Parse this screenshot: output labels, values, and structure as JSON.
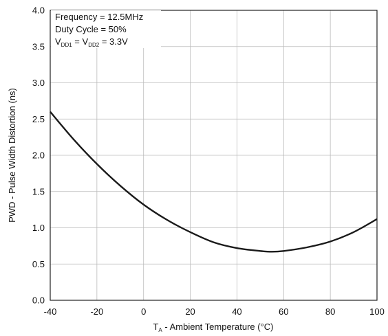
{
  "chart_data": {
    "type": "line",
    "title": "",
    "xlabel": {
      "main": "T",
      "sub": "A",
      "rest": " - Ambient Temperature (°C)"
    },
    "ylabel": "PWD - Pulse Width Distortion (ns)",
    "xlim": [
      -40,
      100
    ],
    "ylim": [
      0.0,
      4.0
    ],
    "x_ticks": [
      "-40",
      "-20",
      "0",
      "20",
      "40",
      "60",
      "80",
      "100"
    ],
    "y_ticks": [
      "0.0",
      "0.5",
      "1.0",
      "1.5",
      "2.0",
      "2.5",
      "3.0",
      "3.5",
      "4.0"
    ],
    "grid": true,
    "annotations": {
      "line1": "Frequency = 12.5MHz",
      "line2": "Duty Cycle = 50%",
      "line3": {
        "a": "V",
        "a_sub": "DD1",
        "eq": " = V",
        "b_sub": "DD2",
        "rest": " = 3.3V"
      }
    },
    "series": [
      {
        "x": [
          -40,
          -30,
          -20,
          -10,
          0,
          10,
          20,
          30,
          40,
          50,
          55,
          60,
          70,
          80,
          90,
          100
        ],
        "y": [
          2.6,
          2.22,
          1.88,
          1.58,
          1.32,
          1.11,
          0.94,
          0.8,
          0.72,
          0.68,
          0.67,
          0.68,
          0.73,
          0.81,
          0.94,
          1.12
        ]
      }
    ],
    "colors": {
      "line": "#1a1a1a",
      "grid": "#bbbbbb",
      "frame": "#222222"
    }
  }
}
